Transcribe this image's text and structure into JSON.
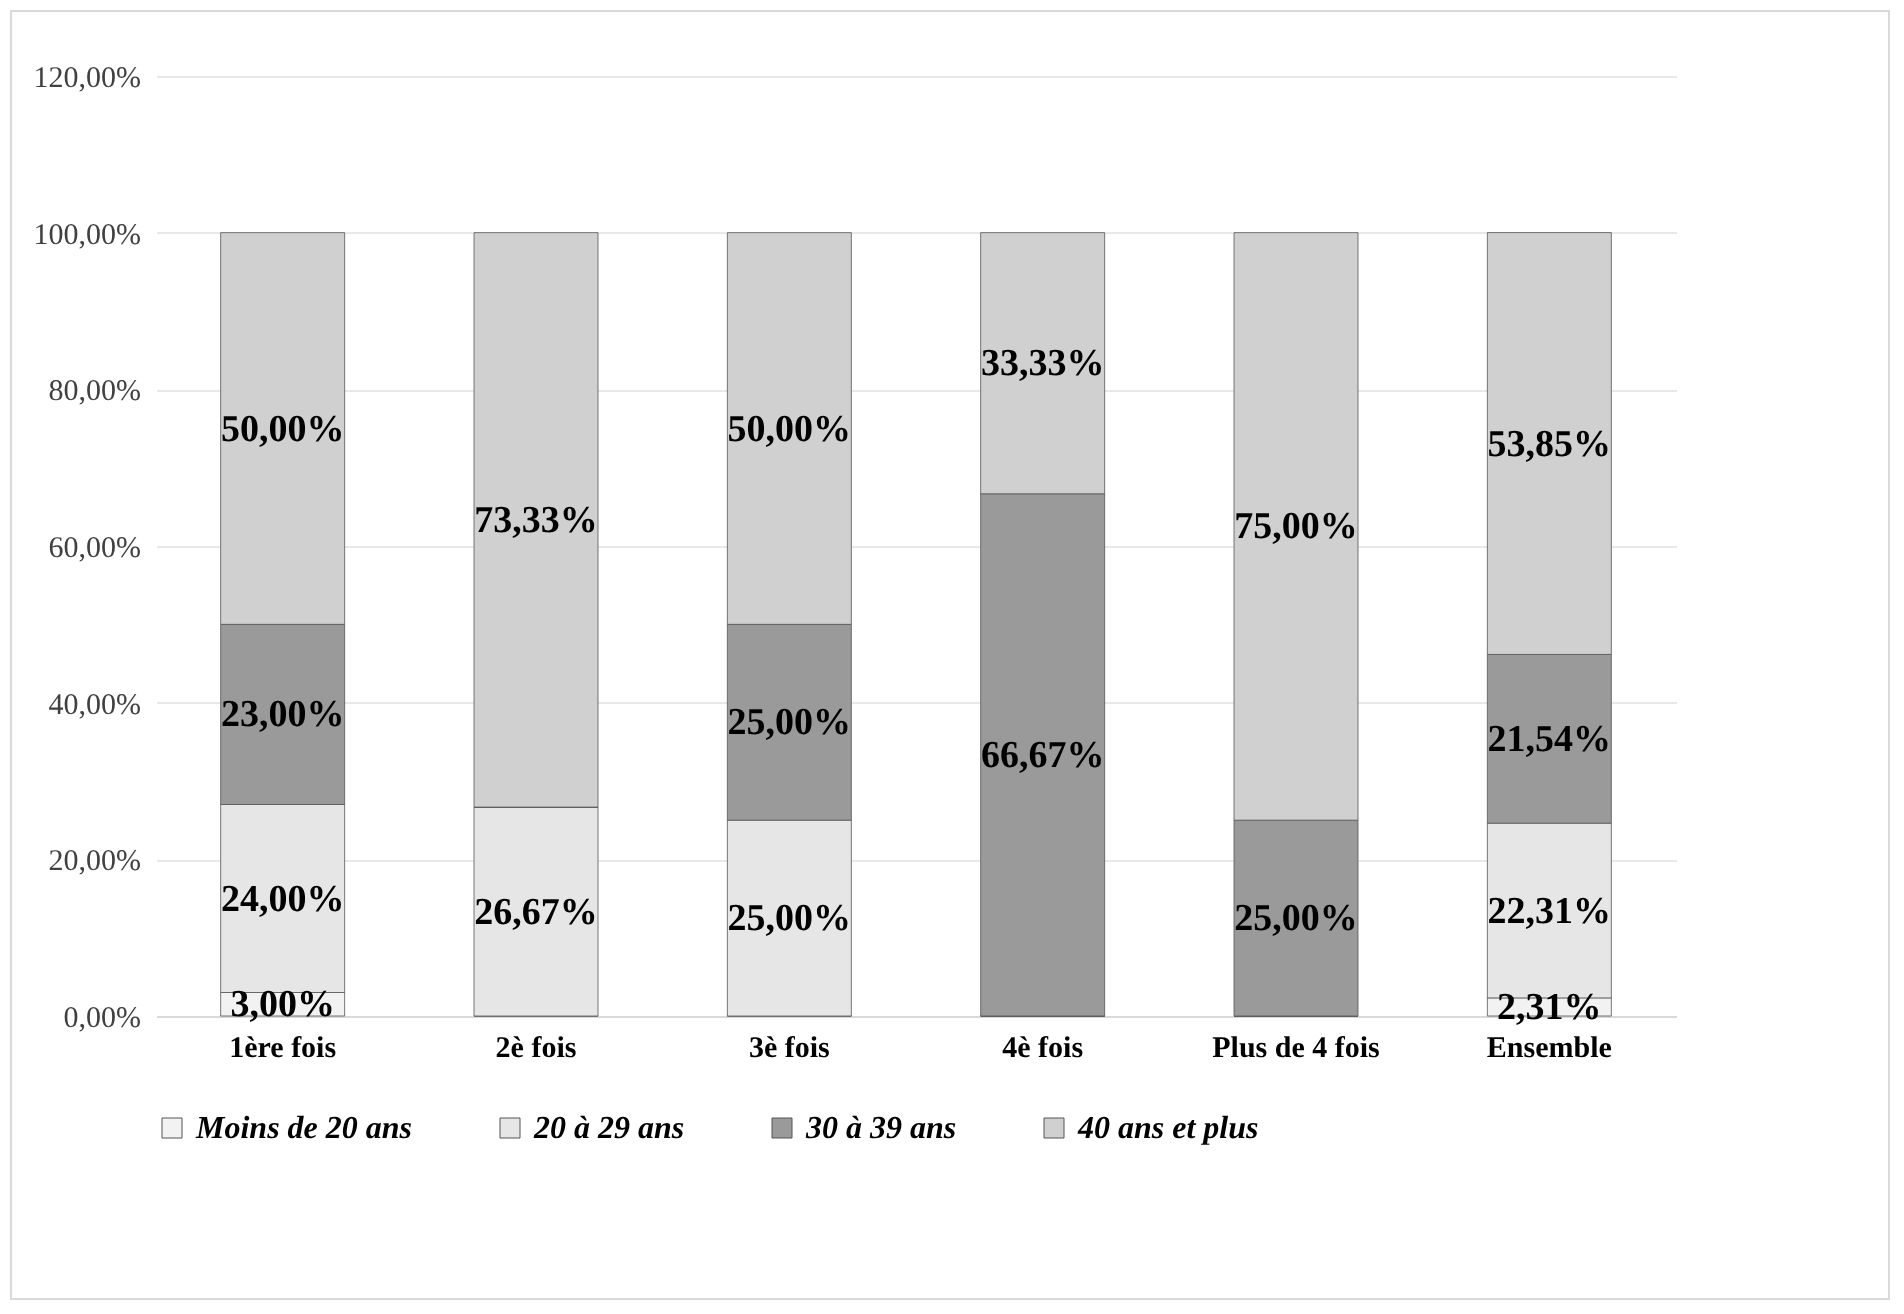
{
  "chart_data": {
    "type": "bar",
    "stacked": true,
    "categories": [
      "1ère fois",
      "2è fois",
      "3è fois",
      "4è fois",
      "Plus de 4 fois",
      "Ensemble"
    ],
    "series": [
      {
        "name": "Moins de 20 ans",
        "color": "#f2f2f2",
        "values": [
          3,
          0,
          0,
          0,
          0,
          2.31
        ],
        "value_labels": [
          "3,00%",
          null,
          null,
          null,
          null,
          "2,31%"
        ]
      },
      {
        "name": "20 à 29 ans",
        "color": "#e6e6e6",
        "values": [
          24,
          26.67,
          25,
          0,
          0,
          22.31
        ],
        "value_labels": [
          "24,00%",
          "26,67%",
          "25,00%",
          null,
          null,
          "22,31%"
        ]
      },
      {
        "name": "30 à 39 ans",
        "color": "#9a9a9a",
        "values": [
          23,
          0,
          25,
          66.67,
          25,
          21.54
        ],
        "value_labels": [
          "23,00%",
          null,
          "25,00%",
          "66,67%",
          "25,00%",
          "21,54%"
        ]
      },
      {
        "name": "40 ans et plus",
        "color": "#d0d0d0",
        "values": [
          50,
          73.33,
          50,
          33.33,
          75,
          53.85
        ],
        "value_labels": [
          "50,00%",
          "73,33%",
          "50,00%",
          "33,33%",
          "75,00%",
          "53,85%"
        ]
      }
    ],
    "ylim": [
      0,
      120
    ],
    "yticks": [
      {
        "value": 0,
        "label": "0,00%"
      },
      {
        "value": 20,
        "label": "20,00%"
      },
      {
        "value": 40,
        "label": "40,00%"
      },
      {
        "value": 60,
        "label": "60,00%"
      },
      {
        "value": 80,
        "label": "80,00%"
      },
      {
        "value": 100,
        "label": "100,00%"
      },
      {
        "value": 120,
        "label": "120,00%"
      }
    ],
    "grid": "y",
    "legend": "bottom"
  }
}
